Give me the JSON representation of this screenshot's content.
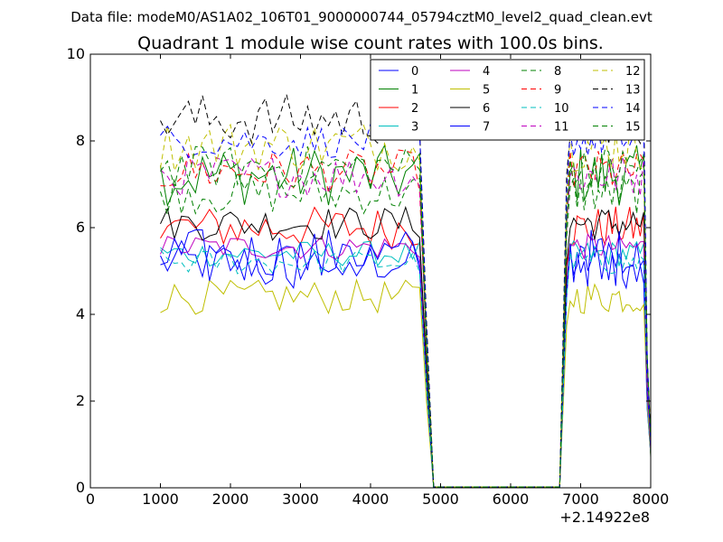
{
  "figure": {
    "suptitle": "Data file: modeM0/AS1A02_106T01_9000000744_05794cztM0_level2_quad_clean.evt"
  },
  "chart_data": {
    "type": "line",
    "title": "Quadrant 1 module wise count rates with 100.0s bins.",
    "xlabel": "",
    "ylabel": "",
    "xlim": [
      0,
      8000
    ],
    "ylim": [
      0,
      10
    ],
    "x_offset_label": "+2.14922e8",
    "xticks": [
      0,
      1000,
      2000,
      3000,
      4000,
      5000,
      6000,
      7000,
      8000
    ],
    "yticks": [
      0,
      2,
      4,
      6,
      8,
      10
    ],
    "legend_position": "upper-right",
    "legend_columns": 4,
    "x_segments": [
      {
        "start": 1000,
        "end": 4700,
        "step": 100
      },
      {
        "start": 4800,
        "end": 8000,
        "step": 100
      }
    ],
    "series": [
      {
        "name": "0",
        "color": "#0000ff",
        "style": "solid",
        "level": 5.2,
        "var": 0.25
      },
      {
        "name": "1",
        "color": "#008000",
        "style": "solid",
        "level": 7.2,
        "var": 0.35
      },
      {
        "name": "2",
        "color": "#ff0000",
        "style": "solid",
        "level": 6.0,
        "var": 0.25
      },
      {
        "name": "3",
        "color": "#00bfbf",
        "style": "solid",
        "level": 5.4,
        "var": 0.15
      },
      {
        "name": "4",
        "color": "#bf00bf",
        "style": "solid",
        "level": 5.55,
        "var": 0.15
      },
      {
        "name": "5",
        "color": "#bfbf00",
        "style": "solid",
        "level": 4.4,
        "var": 0.2
      },
      {
        "name": "6",
        "color": "#000000",
        "style": "solid",
        "level": 6.1,
        "var": 0.2
      },
      {
        "name": "7",
        "color": "#0000ff",
        "style": "solid",
        "level": 5.3,
        "var": 0.35
      },
      {
        "name": "8",
        "color": "#008000",
        "style": "dashed",
        "level": 6.8,
        "var": 0.25
      },
      {
        "name": "9",
        "color": "#ff0000",
        "style": "dashed",
        "level": 7.3,
        "var": 0.25
      },
      {
        "name": "10",
        "color": "#00bfbf",
        "style": "dashed",
        "level": 5.2,
        "var": 0.15
      },
      {
        "name": "11",
        "color": "#bf00bf",
        "style": "dashed",
        "level": 7.2,
        "var": 0.25
      },
      {
        "name": "12",
        "color": "#bfbf00",
        "style": "dashed",
        "level": 7.9,
        "var": 0.3
      },
      {
        "name": "13",
        "color": "#000000",
        "style": "dashed",
        "level": 8.5,
        "var": 0.3
      },
      {
        "name": "14",
        "color": "#0000ff",
        "style": "dashed",
        "level": 8.0,
        "var": 0.2
      },
      {
        "name": "15",
        "color": "#008000",
        "style": "dashed",
        "level": 7.4,
        "var": 0.25
      }
    ],
    "gap": {
      "drop_start": 4700,
      "zero_start": 4900,
      "zero_end": 6700,
      "rise_end": 6850
    },
    "tail": {
      "drop_start": 7900,
      "end": 8000,
      "end_value": 1.0
    }
  }
}
